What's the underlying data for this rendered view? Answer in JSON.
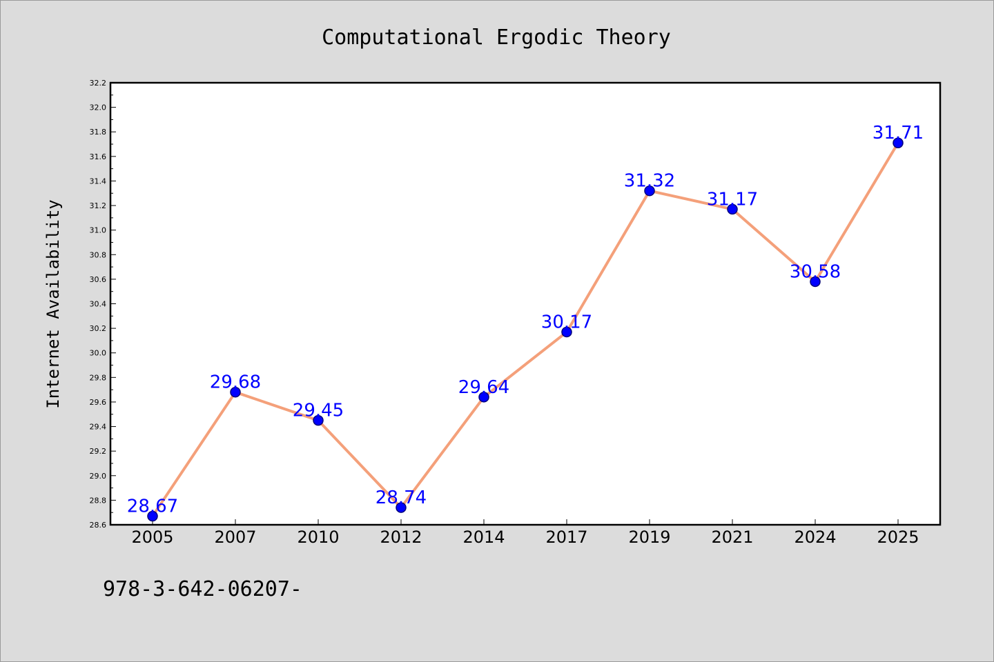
{
  "chart_data": {
    "type": "line",
    "title": "Computational Ergodic Theory",
    "xlabel": "",
    "ylabel": "Internet Availability",
    "categories": [
      "2005",
      "2007",
      "2010",
      "2012",
      "2014",
      "2017",
      "2019",
      "2021",
      "2024",
      "2025"
    ],
    "values": [
      28.67,
      29.68,
      29.45,
      28.74,
      29.64,
      30.17,
      31.32,
      31.17,
      30.58,
      31.71
    ],
    "data_labels": [
      "28.67",
      "29.68",
      "29.45",
      "28.74",
      "29.64",
      "30.17",
      "31.32",
      "31.17",
      "30.58",
      "31.71"
    ],
    "ylim": [
      28.6,
      32.2
    ],
    "yticks": [
      "28.6",
      "28.8",
      "29.0",
      "29.2",
      "29.4",
      "29.6",
      "29.8",
      "30.0",
      "30.2",
      "30.4",
      "30.6",
      "30.8",
      "31.0",
      "31.2",
      "31.4",
      "31.6",
      "31.8",
      "32.0",
      "32.2"
    ],
    "grid": false,
    "colors": {
      "line": "#f4a07a",
      "marker": "#0000ff",
      "marker_edge": "#00007a",
      "data_label": "#0000ff",
      "plot_background": "#ffffff",
      "page_background": "#dcdcdc"
    }
  },
  "footer": {
    "text": "978-3-642-06207-"
  }
}
